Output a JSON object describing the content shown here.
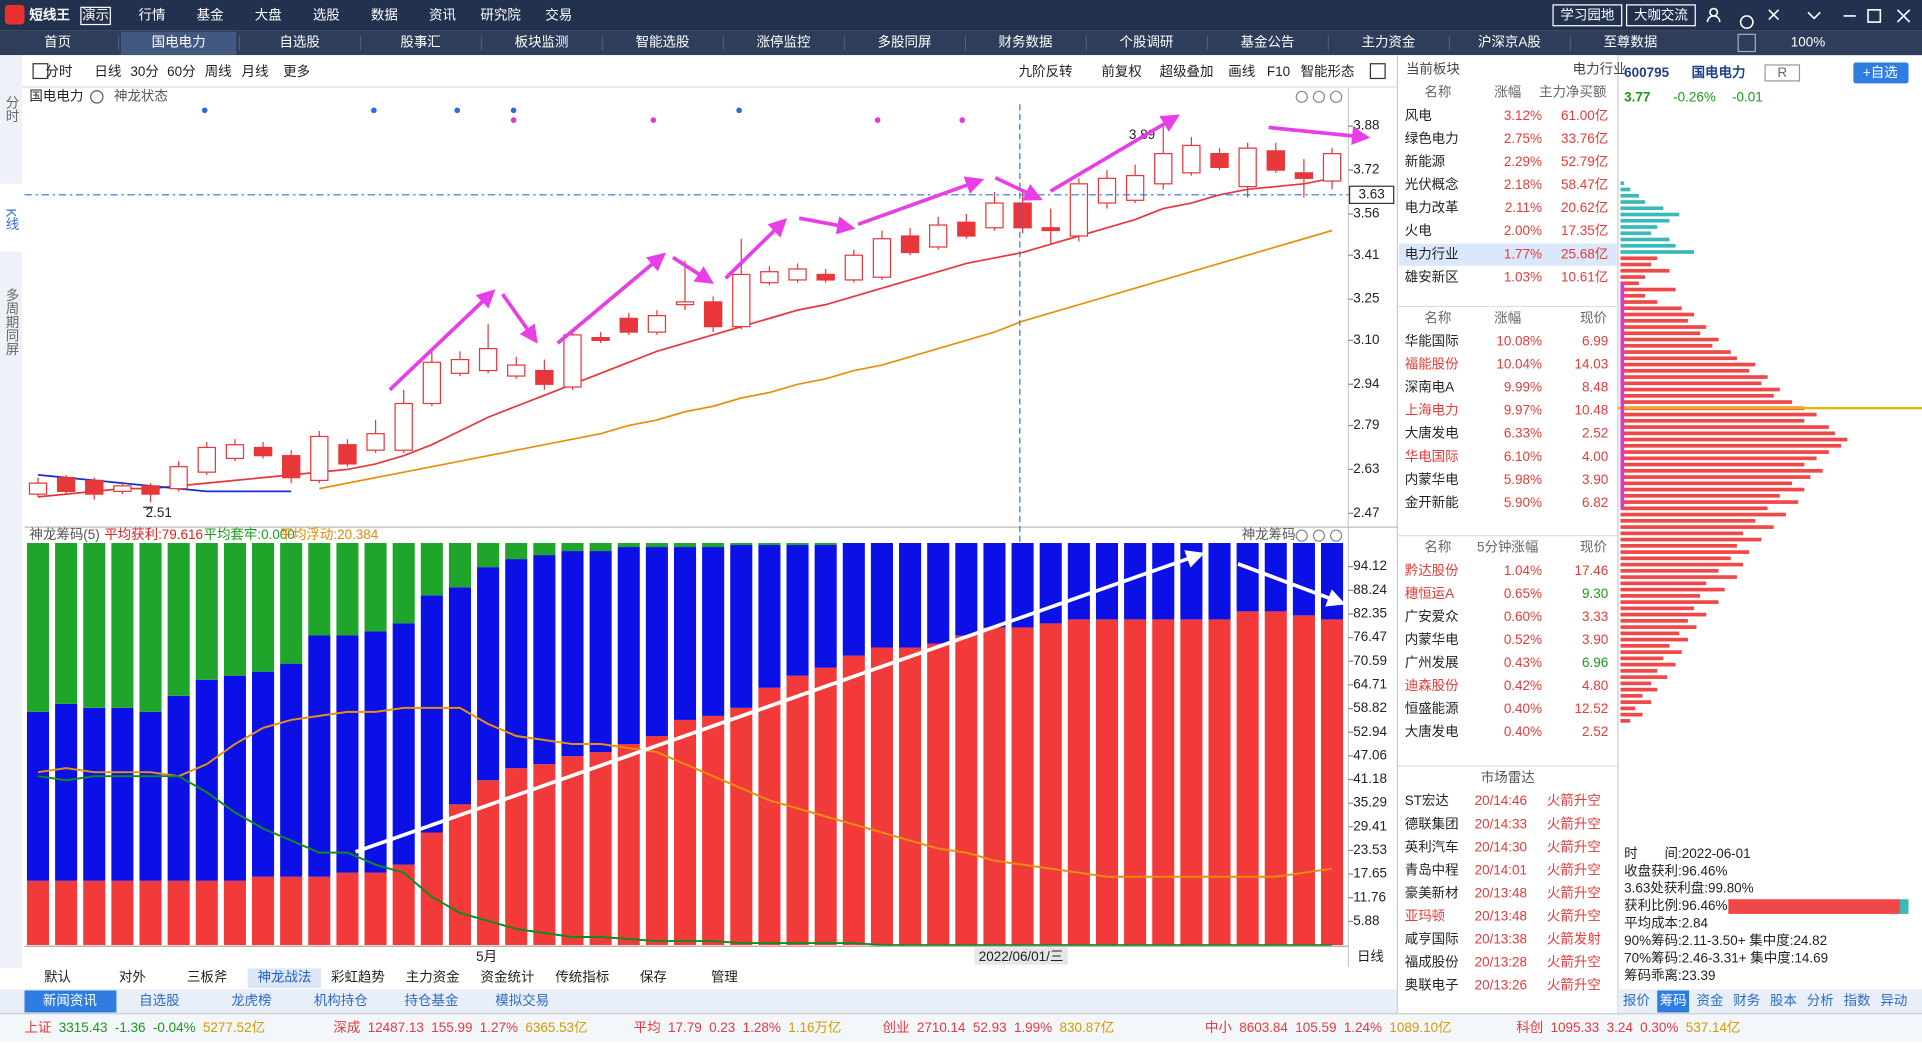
{
  "app": {
    "logo": "短线王",
    "demo": "演示",
    "menu": [
      "行情",
      "基金",
      "大盘",
      "选股",
      "数据",
      "资讯",
      "研究院",
      "交易"
    ],
    "top_buttons": [
      "学习园地",
      "大咖交流"
    ],
    "zoom": "100%"
  },
  "tabs": [
    "首页",
    "国电电力",
    "自选股",
    "股事汇",
    "板块监测",
    "智能选股",
    "涨停监控",
    "多股同屏",
    "财务数据",
    "个股调研",
    "基金公告",
    "主力资金",
    "沪深京A股",
    "至尊数据"
  ],
  "side_tabs": [
    "分时",
    "K线",
    "多周期同屏"
  ],
  "toolbar": {
    "left": [
      "分时",
      "日线",
      "30分",
      "60分",
      "周线",
      "月线",
      "更多"
    ],
    "right": [
      "九阶反转",
      "前复权",
      "超级叠加",
      "画线",
      "F10",
      "智能形态"
    ]
  },
  "kline": {
    "type": "candlestick",
    "title": "国电电力",
    "indicator": "神龙状态",
    "color": "#e8373a",
    "open": [
      2.54,
      2.6,
      2.59,
      2.55,
      2.57,
      2.56,
      2.62,
      2.67,
      2.71,
      2.68,
      2.59,
      2.72,
      2.7,
      2.7,
      2.87,
      2.98,
      2.99,
      2.97,
      2.99,
      2.93,
      3.11,
      3.18,
      3.13,
      3.23,
      3.24,
      3.15,
      3.31,
      3.32,
      3.34,
      3.32,
      3.33,
      3.48,
      3.44,
      3.53,
      3.51,
      3.6,
      3.51,
      3.48,
      3.6,
      3.61,
      3.67,
      3.71,
      3.78,
      3.66,
      3.79,
      3.71,
      3.68
    ],
    "close": [
      2.58,
      2.55,
      2.54,
      2.57,
      2.54,
      2.64,
      2.71,
      2.72,
      2.68,
      2.6,
      2.75,
      2.65,
      2.76,
      2.87,
      3.02,
      3.03,
      3.07,
      3.01,
      2.94,
      3.12,
      3.1,
      3.13,
      3.19,
      3.24,
      3.15,
      3.34,
      3.35,
      3.36,
      3.32,
      3.41,
      3.47,
      3.42,
      3.52,
      3.48,
      3.6,
      3.51,
      3.5,
      3.67,
      3.69,
      3.7,
      3.78,
      3.81,
      3.73,
      3.8,
      3.72,
      3.69,
      3.78
    ],
    "high": [
      2.6,
      2.61,
      2.6,
      2.58,
      2.58,
      2.66,
      2.73,
      2.74,
      2.73,
      2.7,
      2.77,
      2.74,
      2.81,
      2.92,
      3.06,
      3.06,
      3.16,
      3.04,
      3.03,
      3.14,
      3.13,
      3.2,
      3.21,
      3.39,
      3.26,
      3.47,
      3.37,
      3.38,
      3.36,
      3.43,
      3.5,
      3.51,
      3.55,
      3.56,
      3.64,
      3.64,
      3.58,
      3.69,
      3.72,
      3.74,
      3.89,
      3.84,
      3.8,
      3.82,
      3.82,
      3.76,
      3.8
    ],
    "low": [
      2.53,
      2.54,
      2.52,
      2.54,
      2.51,
      2.55,
      2.61,
      2.66,
      2.67,
      2.58,
      2.58,
      2.64,
      2.69,
      2.69,
      2.86,
      2.97,
      2.98,
      2.96,
      2.92,
      2.92,
      3.09,
      3.12,
      3.12,
      3.21,
      3.13,
      3.14,
      3.3,
      3.31,
      3.31,
      3.31,
      3.32,
      3.41,
      3.43,
      3.47,
      3.5,
      3.49,
      3.45,
      3.46,
      3.58,
      3.6,
      3.65,
      3.7,
      3.72,
      3.62,
      3.71,
      3.62,
      3.65
    ],
    "ma": [
      {
        "color": "#e8373a",
        "values": [
          2.53,
          2.54,
          2.55,
          2.56,
          2.56,
          2.57,
          2.58,
          2.59,
          2.6,
          2.61,
          2.62,
          2.63,
          2.65,
          2.68,
          2.72,
          2.77,
          2.82,
          2.86,
          2.9,
          2.94,
          2.98,
          3.02,
          3.06,
          3.09,
          3.12,
          3.15,
          3.18,
          3.21,
          3.23,
          3.26,
          3.29,
          3.32,
          3.35,
          3.38,
          3.4,
          3.42,
          3.45,
          3.48,
          3.51,
          3.54,
          3.58,
          3.6,
          3.63,
          3.65,
          3.66,
          3.67,
          3.69
        ]
      },
      {
        "color": "#e8900c",
        "values": [
          null,
          null,
          null,
          null,
          null,
          null,
          null,
          null,
          null,
          null,
          2.56,
          2.58,
          2.6,
          2.62,
          2.64,
          2.66,
          2.68,
          2.7,
          2.72,
          2.74,
          2.76,
          2.79,
          2.81,
          2.84,
          2.86,
          2.89,
          2.91,
          2.94,
          2.96,
          2.99,
          3.01,
          3.04,
          3.07,
          3.1,
          3.13,
          3.17,
          3.2,
          3.23,
          3.26,
          3.29,
          3.32,
          3.35,
          3.38,
          3.41,
          3.44,
          3.47,
          3.5
        ]
      },
      {
        "color": "#1a2ccf",
        "values": [
          2.61,
          2.6,
          2.59,
          2.58,
          2.57,
          2.56,
          2.55,
          2.55,
          2.55,
          2.55,
          null,
          null,
          null,
          null,
          null,
          null,
          null,
          null,
          null,
          null,
          null,
          null,
          null,
          null,
          null,
          null,
          null,
          null,
          null,
          null,
          null,
          null,
          null,
          null,
          null,
          null,
          null,
          null,
          null,
          null,
          null,
          null,
          null,
          null,
          null,
          null,
          null
        ]
      }
    ],
    "ylim": [
      2.42,
      3.96
    ],
    "yticks": [
      3.88,
      3.72,
      3.56,
      3.41,
      3.25,
      {
        "value": 3.1,
        "label": "3.10"
      },
      2.94,
      2.79,
      2.63,
      2.47
    ],
    "current_price": 3.63,
    "low_marker": 2.51,
    "high_marker": 3.89,
    "x_label": "5月",
    "cursor_date": "2022/06/01/三",
    "period": "日线"
  },
  "chips_panel": {
    "type": "stacked-bar",
    "title": "神龙筹码(5)",
    "overlay_title": "神龙筹码",
    "stats": [
      "平均获利:79.616",
      "平均套牢:0.000",
      "平均浮动:20.384"
    ],
    "series": [
      {
        "color": "#f23a3a",
        "values": [
          16,
          16,
          16,
          16,
          16,
          16,
          16,
          16,
          17,
          17,
          17,
          18,
          18,
          20,
          28,
          35,
          41,
          44,
          45,
          47,
          48,
          50,
          52,
          56,
          57,
          59,
          64,
          67,
          69,
          72,
          74,
          74,
          75,
          77,
          79,
          79,
          80,
          81,
          81,
          81,
          81,
          81,
          81,
          83,
          83,
          82,
          81
        ]
      },
      {
        "color": "#0a10e6",
        "values": [
          42,
          44,
          43,
          43,
          42,
          46,
          50,
          51,
          51,
          53,
          60,
          59,
          60,
          60,
          59,
          54,
          53,
          52,
          52,
          51,
          50,
          49,
          47,
          43,
          42,
          40.5,
          35.5,
          32.5,
          30.5,
          28,
          26,
          26,
          25,
          23,
          21,
          21,
          20,
          19,
          19,
          19,
          19,
          19,
          19,
          17,
          17,
          18,
          19
        ]
      },
      {
        "color": "#1ea52a",
        "values": [
          42,
          40,
          41,
          41,
          42,
          38,
          34,
          33,
          32,
          30,
          23,
          23,
          22,
          20,
          13,
          11,
          6,
          4,
          3,
          2,
          2,
          1,
          1,
          1,
          1,
          0.5,
          0.5,
          0.5,
          0.5,
          0,
          0,
          0,
          0,
          0,
          0,
          0,
          0,
          0,
          0,
          0,
          0,
          0,
          0,
          0,
          0,
          0,
          0
        ]
      }
    ],
    "lines": [
      {
        "color": "#e8900c",
        "values": [
          43,
          44,
          43,
          43,
          43,
          42,
          45,
          50,
          54,
          56,
          57,
          58,
          58,
          59,
          59,
          59,
          55,
          52,
          51,
          50,
          50,
          49,
          48,
          45,
          42,
          39,
          36,
          34,
          32,
          30,
          28,
          26,
          24,
          23,
          21,
          20,
          19,
          18,
          17,
          17,
          17,
          17,
          17,
          17,
          17,
          18,
          19
        ]
      },
      {
        "color": "#138a1c",
        "values": [
          42,
          41,
          42,
          42,
          42,
          42,
          38,
          33,
          29,
          26,
          23,
          23,
          20,
          18,
          12,
          8,
          6,
          4,
          3,
          2,
          2,
          1.5,
          1,
          1,
          1,
          0.5,
          0.5,
          0.5,
          0.5,
          0.5,
          0,
          0,
          0,
          0,
          0,
          0,
          0,
          0,
          0,
          0,
          0,
          0,
          0,
          0,
          0,
          0,
          0
        ]
      }
    ],
    "ylim": [
      0,
      100
    ],
    "yticks": [
      94.12,
      88.24,
      82.35,
      76.47,
      70.59,
      64.71,
      58.82,
      52.94,
      47.06,
      41.18,
      35.29,
      29.41,
      23.53,
      17.65,
      11.76,
      5.88
    ]
  },
  "indicator_tabs": [
    "默认",
    "对外",
    "三板斧",
    "神龙战法",
    "彩虹趋势",
    "主力资金",
    "资金统计",
    "传统指标",
    "保存",
    "管理"
  ],
  "bottom_tabs": [
    "新闻资讯",
    "自选股",
    "龙虎榜",
    "机构持仓",
    "持仓基金",
    "模拟交易"
  ],
  "sector_table": {
    "header": [
      "当前板块",
      "电力行业"
    ],
    "columns": [
      "名称",
      "涨幅",
      "主力净买额"
    ],
    "rows": [
      [
        "风电",
        "3.12%",
        "61.00亿"
      ],
      [
        "绿色电力",
        "2.75%",
        "33.76亿"
      ],
      [
        "新能源",
        "2.29%",
        "52.79亿"
      ],
      [
        "光伏概念",
        "2.18%",
        "58.47亿"
      ],
      [
        "电力改革",
        "2.11%",
        "20.62亿"
      ],
      [
        "火电",
        "2.00%",
        "17.35亿"
      ],
      [
        "电力行业",
        "1.77%",
        "25.68亿"
      ],
      [
        "雄安新区",
        "1.03%",
        "10.61亿"
      ]
    ]
  },
  "gainers_table": {
    "columns": [
      "名称",
      "涨幅",
      "现价"
    ],
    "rows": [
      [
        "华能国际",
        "10.08%",
        "6.99"
      ],
      [
        "福能股份",
        "10.04%",
        "14.03"
      ],
      [
        "深南电A",
        "9.99%",
        "8.48"
      ],
      [
        "上海电力",
        "9.97%",
        "10.48"
      ],
      [
        "大唐发电",
        "6.33%",
        "2.52"
      ],
      [
        "华电国际",
        "6.10%",
        "4.00"
      ],
      [
        "内蒙华电",
        "5.98%",
        "3.90"
      ],
      [
        "金开新能",
        "5.90%",
        "6.82"
      ]
    ]
  },
  "speed_table": {
    "columns": [
      "名称",
      "5分钟涨幅",
      "现价"
    ],
    "rows": [
      [
        "黔达股份",
        "1.04%",
        "17.46"
      ],
      [
        "穗恒运A",
        "0.65%",
        "9.30"
      ],
      [
        "广安爱众",
        "0.60%",
        "3.33"
      ],
      [
        "内蒙华电",
        "0.52%",
        "3.90"
      ],
      [
        "广州发展",
        "0.43%",
        "6.96"
      ],
      [
        "迪森股份",
        "0.42%",
        "4.80"
      ],
      [
        "恒盛能源",
        "0.40%",
        "12.52"
      ],
      [
        "大唐发电",
        "0.40%",
        "2.52"
      ]
    ]
  },
  "radar": {
    "title": "市场雷达",
    "rows": [
      [
        "ST宏达",
        "20/14:46",
        "火箭升空"
      ],
      [
        "德联集团",
        "20/14:33",
        "火箭升空"
      ],
      [
        "英利汽车",
        "20/14:30",
        "火箭升空"
      ],
      [
        "青岛中程",
        "20/14:01",
        "火箭升空"
      ],
      [
        "豪美新材",
        "20/13:48",
        "火箭升空"
      ],
      [
        "亚玛顿",
        "20/13:48",
        "火箭升空"
      ],
      [
        "咸亨国际",
        "20/13:38",
        "火箭发射"
      ],
      [
        "福成股份",
        "20/13:28",
        "火箭升空"
      ],
      [
        "奥联电子",
        "20/13:26",
        "火箭升空"
      ]
    ]
  },
  "quote": {
    "code": "600795",
    "name": "国电电力",
    "badge": "R",
    "add_button": "+自选",
    "price": "3.77",
    "change_pct": "-0.26%",
    "change": "-0.01"
  },
  "chip_dist": {
    "above_color": "#3bb8b8",
    "below_color": "#f04848",
    "above": [
      3,
      8,
      15,
      20,
      35,
      48,
      40,
      30,
      25,
      40,
      45,
      60
    ],
    "below": [
      30,
      25,
      40,
      20,
      15,
      45,
      20,
      30,
      50,
      60,
      55,
      70,
      65,
      80,
      75,
      90,
      95,
      110,
      105,
      120,
      115,
      130,
      125,
      140,
      150,
      160,
      150,
      170,
      175,
      185,
      180,
      170,
      160,
      150,
      165,
      155,
      140,
      150,
      130,
      145,
      120,
      135,
      110,
      125,
      100,
      115,
      95,
      105,
      90,
      100,
      80,
      95,
      70,
      85,
      65,
      80,
      60,
      70,
      55,
      62,
      48,
      55,
      40,
      50,
      35,
      45,
      30,
      38,
      25,
      30,
      18,
      25,
      12,
      18,
      8
    ]
  },
  "chip_stats": [
    "时　　间:2022-06-01",
    "收盘获利:96.46%",
    "3.63处获利盘:99.80%",
    "获利比例:96.46%",
    "平均成本:2.84",
    "90%筹码:2.11-3.50+ 集中度:24.82",
    "70%筹码:2.46-3.31+ 集中度:14.69",
    "筹码乖离:23.39"
  ],
  "right_tabs": [
    "报价",
    "筹码",
    "资金",
    "财务",
    "股本",
    "分析",
    "指数",
    "异动"
  ],
  "status": [
    [
      "上证",
      "3315.43",
      "-1.36",
      "-0.04%",
      "5277.52亿"
    ],
    [
      "深成",
      "12487.13",
      "155.99",
      "1.27%",
      "6365.53亿"
    ],
    [
      "平均",
      "17.79",
      "0.23",
      "1.28%",
      "1.16万亿"
    ],
    [
      "创业",
      "2710.14",
      "52.93",
      "1.99%",
      "830.87亿"
    ],
    [
      "中小",
      "8603.84",
      "105.59",
      "1.24%",
      "1089.10亿"
    ],
    [
      "科创",
      "1095.33",
      "3.24",
      "0.30%",
      "537.14亿"
    ]
  ]
}
